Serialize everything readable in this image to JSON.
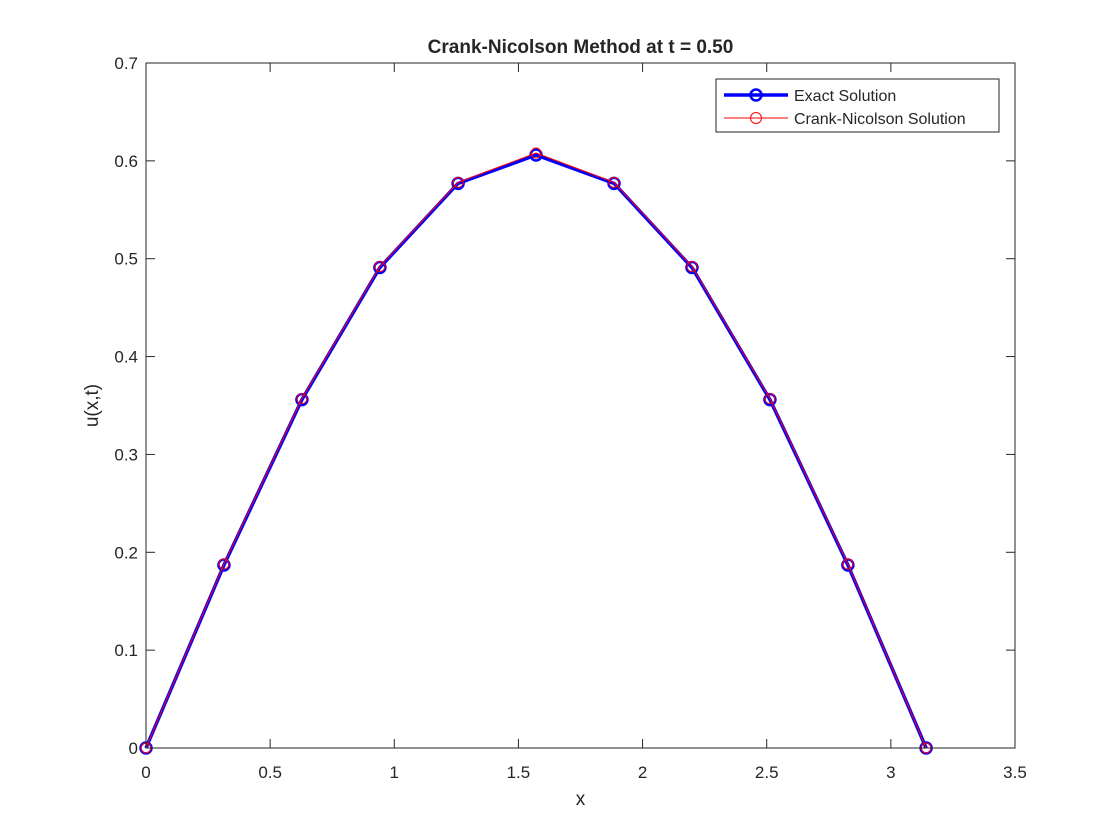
{
  "chart_data": {
    "type": "line",
    "title": "Crank-Nicolson Method at t = 0.50",
    "xlabel": "x",
    "ylabel": "u(x,t)",
    "xlim": [
      0,
      3.5
    ],
    "ylim": [
      0,
      0.7
    ],
    "x_ticks": [
      0,
      0.5,
      1,
      1.5,
      2,
      2.5,
      3,
      3.5
    ],
    "x_tick_labels": [
      "0",
      "0.5",
      "1",
      "1.5",
      "2",
      "2.5",
      "3",
      "3.5"
    ],
    "y_ticks": [
      0,
      0.1,
      0.2,
      0.3,
      0.4,
      0.5,
      0.6,
      0.7
    ],
    "y_tick_labels": [
      "0",
      "0.1",
      "0.2",
      "0.3",
      "0.4",
      "0.5",
      "0.6",
      "0.7"
    ],
    "grid": false,
    "legend_position": "top-right",
    "x": [
      0,
      0.314,
      0.628,
      0.942,
      1.257,
      1.571,
      1.885,
      2.199,
      2.513,
      2.827,
      3.142
    ],
    "series": [
      {
        "name": "Exact Solution",
        "color": "#0000ff",
        "marker": "circle",
        "line_style": "thick",
        "values": [
          0,
          0.187,
          0.356,
          0.491,
          0.577,
          0.606,
          0.577,
          0.491,
          0.356,
          0.187,
          0
        ]
      },
      {
        "name": "Crank-Nicolson Solution",
        "color": "#ff0000",
        "marker": "circle",
        "line_style": "thin",
        "values": [
          0,
          0.188,
          0.357,
          0.492,
          0.578,
          0.608,
          0.578,
          0.492,
          0.357,
          0.188,
          0
        ]
      }
    ]
  }
}
